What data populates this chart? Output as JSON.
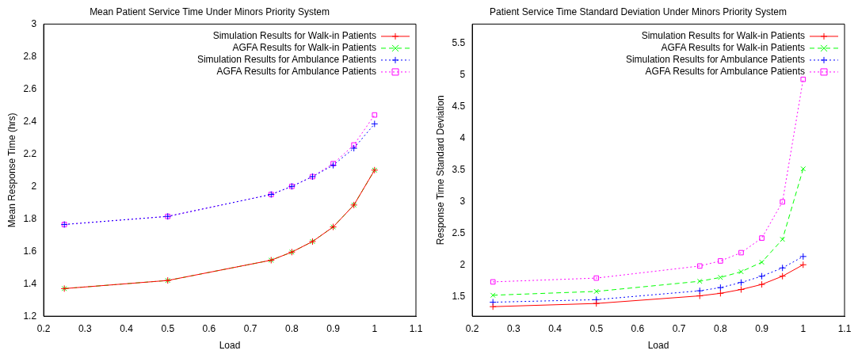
{
  "chart_data": [
    {
      "type": "line",
      "title": "Mean Patient Service Time Under Minors Priority System",
      "xlabel": "Load",
      "ylabel": "Mean Response Time (hrs)",
      "x": [
        0.25,
        0.5,
        0.75,
        0.8,
        0.85,
        0.9,
        0.95,
        1
      ],
      "series": [
        {
          "name": "Simulation Results for Walk-in Patients",
          "color": "#ff0000",
          "marker": "cross",
          "line_style": "solid",
          "values": [
            1.37,
            1.42,
            1.545,
            1.595,
            1.66,
            1.75,
            1.885,
            2.1
          ]
        },
        {
          "name": "AGFA Results for Walk-in Patients",
          "color": "#00ff00",
          "marker": "x",
          "line_style": "dashed",
          "values": [
            1.37,
            1.42,
            1.545,
            1.595,
            1.66,
            1.75,
            1.885,
            2.1
          ]
        },
        {
          "name": "Simulation Results for Ambulance Patients",
          "color": "#0000ff",
          "marker": "cross",
          "line_style": "dotted",
          "values": [
            1.765,
            1.815,
            1.95,
            2.0,
            2.06,
            2.13,
            2.235,
            2.385
          ]
        },
        {
          "name": "AGFA Results for Ambulance Patients",
          "color": "#ff00ff",
          "marker": "square",
          "line_style": "dotted",
          "values": [
            1.765,
            1.815,
            1.95,
            2.0,
            2.06,
            2.14,
            2.255,
            2.44
          ]
        }
      ],
      "xlim": [
        0.2,
        1.1
      ],
      "xticks": [
        0.2,
        0.3,
        0.4,
        0.5,
        0.6,
        0.7,
        0.8,
        0.9,
        1,
        1.1
      ],
      "ylim": [
        1.2,
        3
      ],
      "yticks": [
        1.2,
        1.4,
        1.6,
        1.8,
        2,
        2.2,
        2.4,
        2.6,
        2.8,
        3
      ],
      "grid": false,
      "legend": "top right"
    },
    {
      "type": "line",
      "title": "Patient Service Time Standard Deviation Under Minors Priority System",
      "xlabel": "Load",
      "ylabel": "Response Time Standard Deviation",
      "x": [
        0.25,
        0.5,
        0.75,
        0.8,
        0.85,
        0.9,
        0.95,
        1
      ],
      "series": [
        {
          "name": "Simulation Results for Walk-in Patients",
          "color": "#ff0000",
          "marker": "cross",
          "line_style": "solid",
          "values": [
            1.35,
            1.4,
            1.52,
            1.56,
            1.62,
            1.7,
            1.83,
            2.01
          ]
        },
        {
          "name": "AGFA Results for Walk-in Patients",
          "color": "#00ff00",
          "marker": "x",
          "line_style": "dashed",
          "values": [
            1.53,
            1.59,
            1.75,
            1.81,
            1.9,
            2.05,
            2.41,
            3.52
          ]
        },
        {
          "name": "Simulation Results for Ambulance Patients",
          "color": "#0000ff",
          "marker": "cross",
          "line_style": "dotted",
          "values": [
            1.42,
            1.46,
            1.6,
            1.65,
            1.73,
            1.83,
            1.96,
            2.14
          ]
        },
        {
          "name": "AGFA Results for Ambulance Patients",
          "color": "#ff00ff",
          "marker": "square",
          "line_style": "dotted",
          "values": [
            1.74,
            1.8,
            1.99,
            2.07,
            2.2,
            2.43,
            3.0,
            4.93
          ]
        }
      ],
      "xlim": [
        0.2,
        1.1
      ],
      "xticks": [
        0.2,
        0.3,
        0.4,
        0.5,
        0.6,
        0.7,
        0.8,
        0.9,
        1,
        1.1
      ],
      "ylim": [
        1.2,
        5.8
      ],
      "yticks": [
        1.5,
        2,
        2.5,
        3,
        3.5,
        4,
        4.5,
        5,
        5.5
      ],
      "grid": false,
      "legend": "top right"
    }
  ]
}
